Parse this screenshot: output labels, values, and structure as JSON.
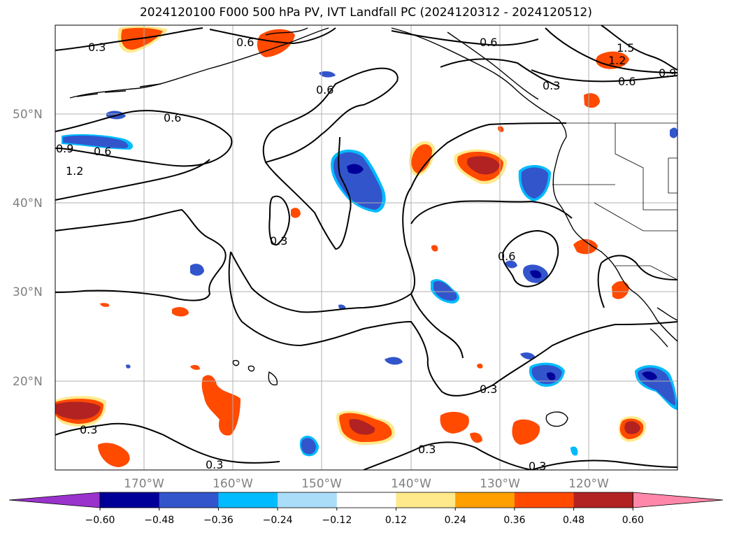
{
  "title": "2024120100 F000 500 hPa PV, IVT Landfall PC (2024120312 - 2024120512)",
  "map": {
    "lat_labels": [
      "50°N",
      "40°N",
      "30°N",
      "20°N"
    ],
    "lon_labels": [
      "170°W",
      "160°W",
      "150°W",
      "140°W",
      "130°W",
      "120°W"
    ],
    "contour_labels": [
      "0.3",
      "0.6",
      "0.9",
      "1.2",
      "1.5"
    ],
    "colors": {
      "coast": "#000000",
      "grid": "#b0b0b0",
      "contour": "#000000"
    }
  },
  "colorbar": {
    "ticks": [
      "−0.60",
      "−0.48",
      "−0.36",
      "−0.24",
      "−0.12",
      "0.12",
      "0.24",
      "0.36",
      "0.48",
      "0.60"
    ],
    "colors": [
      "#9933cc",
      "#000099",
      "#3355cc",
      "#00bbff",
      "#aaddf7",
      "#ffffff",
      "#ffe98a",
      "#ff9f00",
      "#ff4a00",
      "#b22222",
      "#ff88aa"
    ]
  }
}
